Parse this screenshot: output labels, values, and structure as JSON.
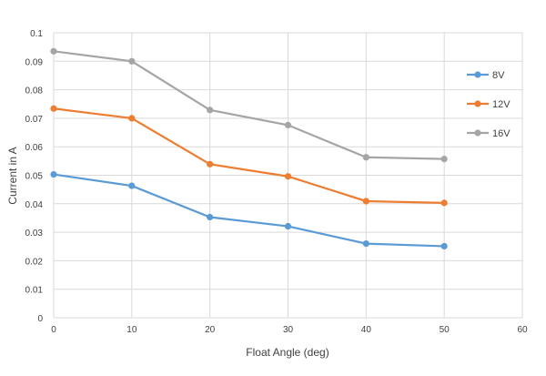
{
  "chart_data": {
    "type": "line",
    "title": "",
    "xlabel": "Float Angle (deg)",
    "ylabel": "Current in A",
    "xlim": [
      0,
      60
    ],
    "ylim": [
      0,
      0.1
    ],
    "xticks": [
      "0",
      "10",
      "20",
      "30",
      "40",
      "50",
      "60"
    ],
    "yticks": [
      "0",
      "0.01",
      "0.02",
      "0.03",
      "0.04",
      "0.05",
      "0.06",
      "0.07",
      "0.08",
      "0.09",
      "0.1"
    ],
    "grid": true,
    "legend_position": "right",
    "x": [
      0,
      10,
      20,
      30,
      40,
      50
    ],
    "series": [
      {
        "name": "8V",
        "color": "#5B9BD5",
        "values": [
          0.0503,
          0.0463,
          0.0353,
          0.0321,
          0.026,
          0.0251
        ]
      },
      {
        "name": "12V",
        "color": "#ED7D31",
        "values": [
          0.0734,
          0.07,
          0.0539,
          0.0496,
          0.0409,
          0.0403
        ]
      },
      {
        "name": "16V",
        "color": "#A5A5A5",
        "values": [
          0.0935,
          0.09,
          0.0729,
          0.0676,
          0.0563,
          0.0557
        ]
      }
    ]
  }
}
